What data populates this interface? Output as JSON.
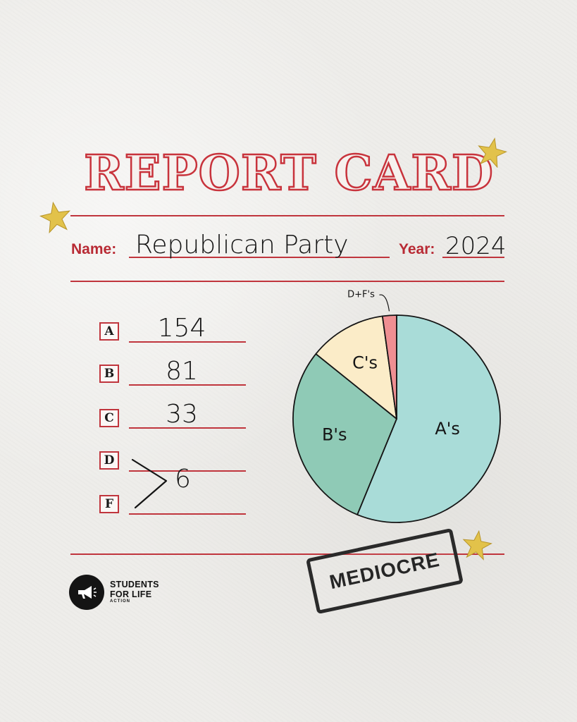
{
  "header": {
    "title": "REPORT CARD"
  },
  "form": {
    "name_label": "Name:",
    "name_value": "Republican Party",
    "year_label": "Year:",
    "year_value": "2024"
  },
  "grades": [
    {
      "letter": "A",
      "value": "154"
    },
    {
      "letter": "B",
      "value": "81"
    },
    {
      "letter": "C",
      "value": "33"
    },
    {
      "letter": "D"
    },
    {
      "letter": "F"
    }
  ],
  "df_combined_value": "6",
  "chart_data": {
    "type": "pie",
    "slices": [
      {
        "label": "A's",
        "value": 154,
        "color": "#a9dcd8"
      },
      {
        "label": "B's",
        "value": 81,
        "color": "#8fcab6"
      },
      {
        "label": "C's",
        "value": 33,
        "color": "#fbecc8"
      },
      {
        "label": "D+F's",
        "value": 6,
        "color": "#ef8f92"
      }
    ]
  },
  "stamp": {
    "text": "MEDIOCRE"
  },
  "logo": {
    "line1": "STUDENTS",
    "line2": "FOR LIFE",
    "line3": "ACTION"
  },
  "colors": {
    "accent": "#c0353d",
    "star": "#e2c24a"
  }
}
